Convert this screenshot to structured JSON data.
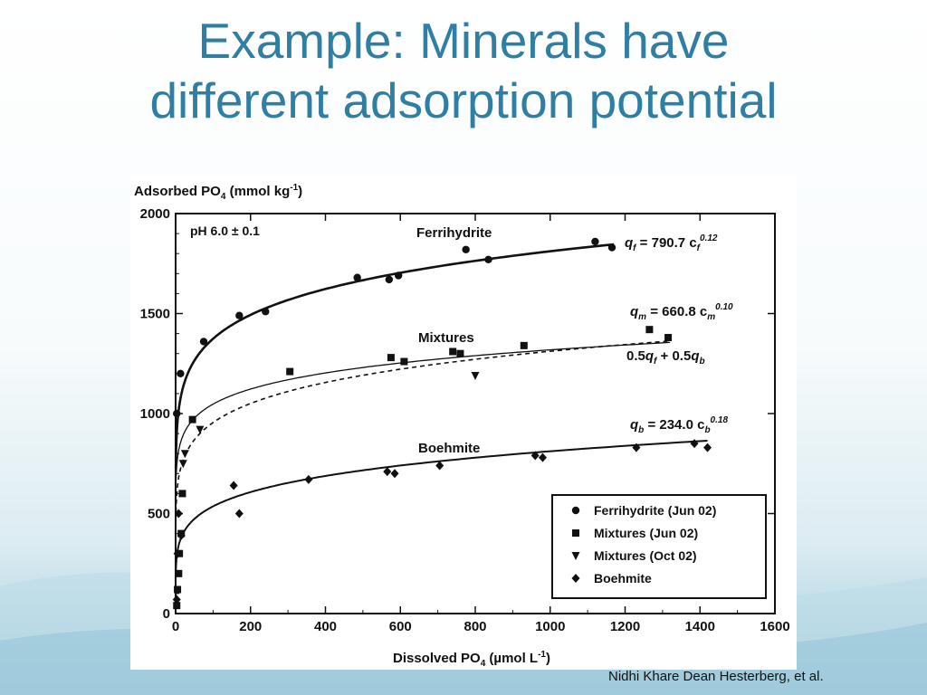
{
  "slide": {
    "title_line1": "Example: Minerals have",
    "title_line2": "different adsorption potential",
    "citation": "Nidhi Khare Dean Hesterberg, et al."
  },
  "colors": {
    "title": "#2f7ea3",
    "plot_ink": "#111111",
    "background_bottom": "#9fcbdc"
  },
  "chart_data": {
    "type": "scatter",
    "ylabel_main": "Adsorbed PO",
    "ylabel_sub": "4",
    "ylabel_units": " (mmol kg",
    "ylabel_exp": "-1",
    "ylabel_close": ")",
    "xlabel_main": "Dissolved PO",
    "xlabel_sub": "4",
    "xlabel_units": " (µmol L",
    "xlabel_exp": "-1",
    "xlabel_close": ")",
    "xlim": [
      0,
      1600
    ],
    "ylim": [
      0,
      2000
    ],
    "x_ticks": [
      0,
      200,
      400,
      600,
      800,
      1000,
      1200,
      1400,
      1600
    ],
    "y_ticks": [
      0,
      500,
      1000,
      1500,
      2000
    ],
    "grid": false,
    "legend_placement": "bottom-right",
    "annotations": {
      "ph": "pH  6.0 ± 0.1",
      "ferrihydrite": "Ferrihydrite",
      "mixtures": "Mixtures",
      "boehmite": "Boehmite"
    },
    "equations": {
      "f": {
        "q": "q",
        "qsub": "f",
        "mid": " = 790.7 c",
        "csub": "f",
        "exp": "0.12"
      },
      "m": {
        "q": "q",
        "qsub": "m",
        "mid": " = 660.8 c",
        "csub": "m",
        "exp": "0.10"
      },
      "b": {
        "q": "q",
        "qsub": "b",
        "mid": " = 234.0 c",
        "csub": "b",
        "exp": "0.18"
      },
      "avg": {
        "p1": "0.5",
        "q1": "q",
        "s1": "f",
        "p2": " + 0.5",
        "q2": "q",
        "s2": "b"
      }
    },
    "fits": [
      {
        "name": "Ferrihydrite fit",
        "a": 790.7,
        "n": 0.12,
        "xmax": 1170,
        "style": "thick"
      },
      {
        "name": "Mixtures fit",
        "a": 660.8,
        "n": 0.1,
        "xmax": 1320,
        "style": "thin"
      },
      {
        "name": "Average fit",
        "a": 0,
        "n": 0,
        "xmax": 1320,
        "style": "dashed"
      },
      {
        "name": "Boehmite fit",
        "a": 234.0,
        "n": 0.18,
        "xmax": 1420,
        "style": "medium"
      }
    ],
    "series": [
      {
        "name": "Ferrihydrite (Jun 02)",
        "marker": "circle",
        "points": [
          [
            3,
            1000
          ],
          [
            13,
            1200
          ],
          [
            75,
            1360
          ],
          [
            170,
            1490
          ],
          [
            240,
            1510
          ],
          [
            485,
            1680
          ],
          [
            570,
            1670
          ],
          [
            595,
            1690
          ],
          [
            775,
            1820
          ],
          [
            835,
            1770
          ],
          [
            1120,
            1860
          ],
          [
            1165,
            1830
          ]
        ]
      },
      {
        "name": "Mixtures (Jun 02)",
        "marker": "square",
        "points": [
          [
            3,
            40
          ],
          [
            5,
            120
          ],
          [
            8,
            200
          ],
          [
            10,
            300
          ],
          [
            15,
            400
          ],
          [
            18,
            600
          ],
          [
            45,
            970
          ],
          [
            305,
            1210
          ],
          [
            575,
            1280
          ],
          [
            610,
            1260
          ],
          [
            740,
            1310
          ],
          [
            760,
            1300
          ],
          [
            930,
            1340
          ],
          [
            1265,
            1420
          ],
          [
            1315,
            1380
          ]
        ]
      },
      {
        "name": "Mixtures (Oct 02)",
        "marker": "triangle",
        "points": [
          [
            20,
            750
          ],
          [
            25,
            800
          ],
          [
            65,
            920
          ],
          [
            800,
            1190
          ]
        ]
      },
      {
        "name": "Boehmite",
        "marker": "diamond",
        "points": [
          [
            3,
            70
          ],
          [
            5,
            300
          ],
          [
            8,
            500
          ],
          [
            15,
            390
          ],
          [
            155,
            640
          ],
          [
            170,
            500
          ],
          [
            355,
            670
          ],
          [
            565,
            710
          ],
          [
            585,
            700
          ],
          [
            705,
            740
          ],
          [
            960,
            790
          ],
          [
            980,
            780
          ],
          [
            1230,
            830
          ],
          [
            1385,
            850
          ],
          [
            1420,
            830
          ]
        ]
      }
    ]
  }
}
